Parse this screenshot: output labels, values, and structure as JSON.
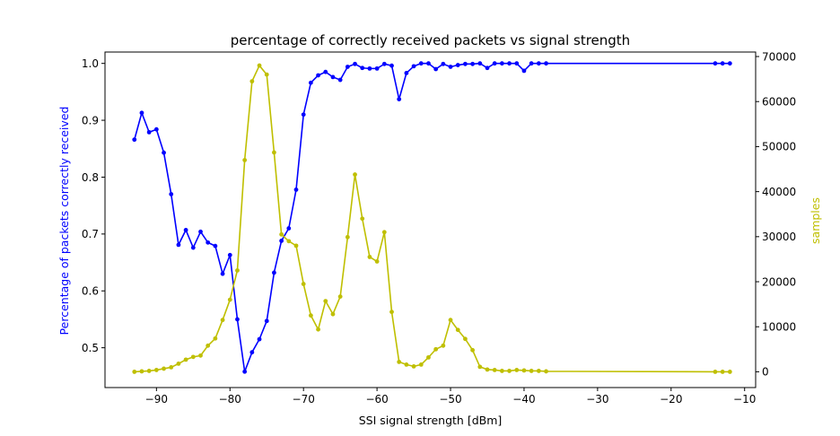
{
  "chart_data": {
    "type": "line",
    "title": "percentage of correctly received packets vs signal strength",
    "xlabel": "SSI signal strength [dBm]",
    "ylabel_left": "Percentage of packets correctly received",
    "ylabel_right": "samples",
    "xlim": [
      -97,
      -8.5
    ],
    "ylim_left": [
      0.43,
      1.02
    ],
    "ylim_right": [
      -3500,
      71000
    ],
    "xticks": [
      -90,
      -80,
      -70,
      -60,
      -50,
      -40,
      -30,
      -20,
      -10
    ],
    "xtick_labels": [
      "−90",
      "−80",
      "−70",
      "−60",
      "−50",
      "−40",
      "−30",
      "−20",
      "−10"
    ],
    "yticks_left": [
      0.5,
      0.6,
      0.7,
      0.8,
      0.9,
      1.0
    ],
    "ytick_labels_left": [
      "0.5",
      "0.6",
      "0.7",
      "0.8",
      "0.9",
      "1.0"
    ],
    "yticks_right": [
      0,
      10000,
      20000,
      30000,
      40000,
      50000,
      60000,
      70000
    ],
    "ytick_labels_right": [
      "0",
      "10000",
      "20000",
      "30000",
      "40000",
      "50000",
      "60000",
      "70000"
    ],
    "grid": false,
    "colors": {
      "left_series": "#0000ff",
      "right_series": "#bfbf00",
      "left_axis_label": "#0000ff",
      "right_axis_label": "#bfbf00"
    },
    "series": [
      {
        "axis": "left",
        "x": [
          -93,
          -92,
          -91,
          -90,
          -89,
          -88,
          -87,
          -86,
          -85,
          -84,
          -83,
          -82,
          -81,
          -80,
          -79,
          -78,
          -77,
          -76,
          -75,
          -74,
          -73,
          -72,
          -71,
          -70,
          -69,
          -68,
          -67,
          -66,
          -65,
          -64,
          -63,
          -62,
          -61,
          -60,
          -59,
          -58,
          -57,
          -56,
          -55,
          -54,
          -53,
          -52,
          -51,
          -50,
          -49,
          -48,
          -47,
          -46,
          -45,
          -44,
          -43,
          -42,
          -41,
          -40,
          -39,
          -38,
          -37,
          -14,
          -13,
          -12
        ],
        "y": [
          0.866,
          0.913,
          0.879,
          0.884,
          0.843,
          0.77,
          0.681,
          0.707,
          0.676,
          0.704,
          0.685,
          0.679,
          0.63,
          0.663,
          0.55,
          0.458,
          0.492,
          0.515,
          0.547,
          0.632,
          0.688,
          0.71,
          0.778,
          0.91,
          0.966,
          0.979,
          0.985,
          0.976,
          0.971,
          0.994,
          0.999,
          0.992,
          0.991,
          0.991,
          0.999,
          0.996,
          0.937,
          0.983,
          0.995,
          1.0,
          1.0,
          0.99,
          0.999,
          0.994,
          0.997,
          0.999,
          0.999,
          1.0,
          0.992,
          1.0,
          1.0,
          1.0,
          1.0,
          0.987,
          1.0,
          1.0,
          1.0,
          1.0,
          1.0,
          1.0
        ]
      },
      {
        "axis": "right",
        "x": [
          -93,
          -92,
          -91,
          -90,
          -89,
          -88,
          -87,
          -86,
          -85,
          -84,
          -83,
          -82,
          -81,
          -80,
          -79,
          -78,
          -77,
          -76,
          -75,
          -74,
          -73,
          -72,
          -71,
          -70,
          -69,
          -68,
          -67,
          -66,
          -65,
          -64,
          -63,
          -62,
          -61,
          -60,
          -59,
          -58,
          -57,
          -56,
          -55,
          -54,
          -53,
          -52,
          -51,
          -50,
          -49,
          -48,
          -47,
          -46,
          -45,
          -44,
          -43,
          -42,
          -41,
          -40,
          -39,
          -38,
          -37,
          -14,
          -13,
          -12
        ],
        "y": [
          0,
          100,
          200,
          400,
          700,
          1000,
          1800,
          2700,
          3300,
          3600,
          5800,
          7400,
          11500,
          16000,
          22500,
          47000,
          64500,
          68000,
          66000,
          48700,
          30500,
          29000,
          28000,
          19500,
          12500,
          9400,
          15700,
          12800,
          16700,
          29900,
          43800,
          34000,
          25500,
          24500,
          31000,
          13300,
          2200,
          1600,
          1200,
          1600,
          3200,
          5000,
          5800,
          11500,
          9300,
          7300,
          4800,
          1100,
          500,
          400,
          200,
          200,
          400,
          300,
          200,
          200,
          100,
          0,
          0,
          0
        ]
      }
    ]
  }
}
